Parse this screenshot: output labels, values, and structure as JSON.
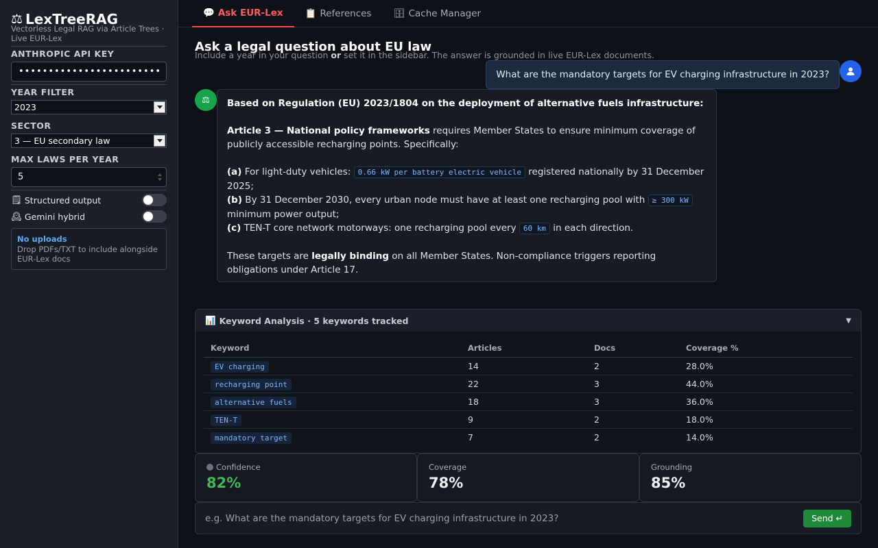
{
  "sidebar": {
    "logo_icon": "⚖",
    "title": "LexTreeRAG",
    "subtitle": "Vectorless Legal RAG via Article Trees · Live EUR-Lex",
    "api_key_label": "ANTHROPIC API KEY",
    "api_key_value": "••••••••••••••••••••••••",
    "year_label": "YEAR FILTER",
    "year_value": "2023",
    "sector_label": "SECTOR",
    "sector_value": "3 — EU secondary law",
    "max_laws_label": "MAX LAWS PER YEAR",
    "max_laws_value": "5",
    "structured_icon": "🗒",
    "structured_label": "Structured output",
    "gemini_icon": "🕰",
    "gemini_label": "Gemini hybrid",
    "upload_title": "No uploads",
    "upload_desc": "Drop PDFs/TXT to include alongside EUR-Lex docs"
  },
  "tabs": [
    {
      "icon": "💬",
      "label": "Ask EUR-Lex"
    },
    {
      "icon": "📋",
      "label": "References"
    },
    {
      "icon": "🗄",
      "label": "Cache Manager"
    }
  ],
  "header": {
    "title": "Ask a legal question about EU law",
    "sub_a": "Include a year in your question ",
    "sub_b": "or",
    "sub_c": " set it in the sidebar. The answer is grounded in live EUR-Lex documents."
  },
  "user_message": "What are the mandatory targets for EV charging infrastructure in 2023?",
  "bot": {
    "avatar_icon": "⚖",
    "intro": "Based on Regulation (EU) 2023/1804 on the deployment of alternative fuels infrastructure:",
    "article_bold": "Article 3 — National policy frameworks",
    "article_text": " requires Member States to ensure minimum coverage of publicly accessible recharging points. Specifically:",
    "a_tag": "(a)",
    "a_pre": " For light-duty vehicles: ",
    "a_code": "0.66 kW per battery electric vehicle",
    "a_post": " registered nationally by 31 December 2025;",
    "b_tag": "(b)",
    "b_pre": " By 31 December 2030, every urban node must have at least one recharging pool with ",
    "b_code": "≥ 300 kW",
    "b_post": " minimum power output;",
    "c_tag": "(c)",
    "c_pre": " TEN-T core network motorways: one recharging pool every ",
    "c_code": "60 km",
    "c_post": " in each direction.",
    "close_pre": "These targets are ",
    "close_bold": "legally binding",
    "close_post": " on all Member States. Non-compliance triggers reporting obligations under Article 17."
  },
  "keyword_analysis": {
    "icon": "📊",
    "title": "Keyword Analysis · 5 keywords tracked",
    "columns": [
      "Keyword",
      "Articles",
      "Docs",
      "Coverage %"
    ],
    "rows": [
      {
        "keyword": "EV charging",
        "articles": "14",
        "docs": "2",
        "coverage": "28.0%"
      },
      {
        "keyword": "recharging point",
        "articles": "22",
        "docs": "3",
        "coverage": "44.0%"
      },
      {
        "keyword": "alternative fuels",
        "articles": "18",
        "docs": "3",
        "coverage": "36.0%"
      },
      {
        "keyword": "TEN-T",
        "articles": "9",
        "docs": "2",
        "coverage": "18.0%"
      },
      {
        "keyword": "mandatory target",
        "articles": "7",
        "docs": "2",
        "coverage": "14.0%"
      }
    ]
  },
  "metrics": [
    {
      "label": "Confidence",
      "value": "82%"
    },
    {
      "label": "Coverage",
      "value": "78%"
    },
    {
      "label": "Grounding",
      "value": "85%"
    }
  ],
  "chat_input": {
    "placeholder": "e.g. What are the mandatory targets for EV charging infrastructure in 2023?",
    "send_label": "Send ↵"
  },
  "colors": {
    "accent_red": "#ff4b4b",
    "user_avatar": "#2563eb",
    "bot_avatar": "#16a34a",
    "confidence_green": "#3fb950",
    "send_green": "#1f8a3a"
  }
}
